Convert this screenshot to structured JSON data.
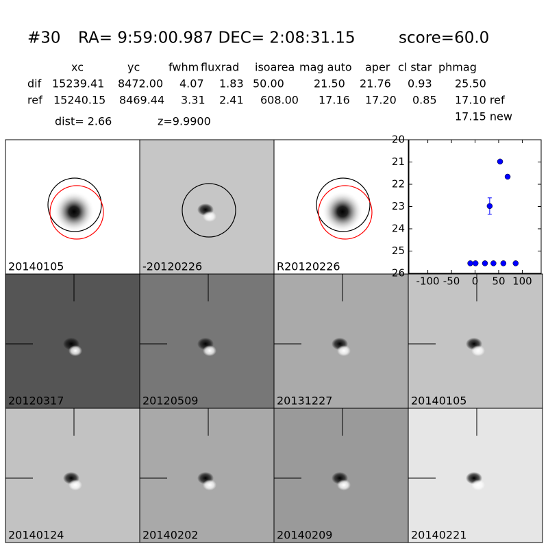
{
  "header": {
    "id": "#30",
    "coords": "RA= 9:59:00.987 DEC= 2:08:31.15",
    "score": "score=60.0"
  },
  "table": {
    "columns": [
      "xc",
      "yc",
      "fwhm",
      "fluxrad",
      "isoarea",
      "mag auto",
      "aper",
      "cl star",
      "phmag"
    ],
    "rows": [
      [
        "dif",
        "15239.41",
        "8472.00",
        "4.07",
        "1.83",
        "50.00",
        "21.50",
        "21.76",
        "0.93",
        "25.50"
      ],
      [
        "ref",
        "15240.15",
        "8469.44",
        "3.31",
        "2.41",
        "608.00",
        "17.16",
        "17.20",
        "0.85",
        "17.10 ref"
      ]
    ],
    "extra": "17.15 new"
  },
  "dist": "dist=  2.66",
  "z": "z=9.9900",
  "stamps": [
    {
      "label": "20140105"
    },
    {
      "label": "-20120226"
    },
    {
      "label": "R20120226"
    },
    {
      "label": "20120317"
    },
    {
      "label": "20120509"
    },
    {
      "label": "20131227"
    },
    {
      "label": "20140105",
      "color": "#ff0000"
    },
    {
      "label": "20140124"
    },
    {
      "label": "20140202"
    },
    {
      "label": "20140209"
    },
    {
      "label": "20140221"
    }
  ],
  "chart_data": {
    "type": "scatter",
    "x": [
      -10,
      1,
      21,
      31,
      39,
      53,
      60,
      69,
      86
    ],
    "series": [
      {
        "color": "#0000ff",
        "values": [
          25.55,
          25.55,
          25.55,
          22.98,
          25.55,
          20.98,
          25.55,
          21.66,
          25.55
        ],
        "errors": [
          null,
          null,
          null,
          0.37,
          null,
          null,
          null,
          0.06,
          null
        ]
      }
    ],
    "xlim": [
      -140,
      140
    ],
    "ylim": [
      26,
      20
    ],
    "xticks": [
      -100,
      -50,
      0,
      50,
      100
    ],
    "yticks": [
      20,
      21,
      22,
      23,
      24,
      25,
      26
    ]
  }
}
